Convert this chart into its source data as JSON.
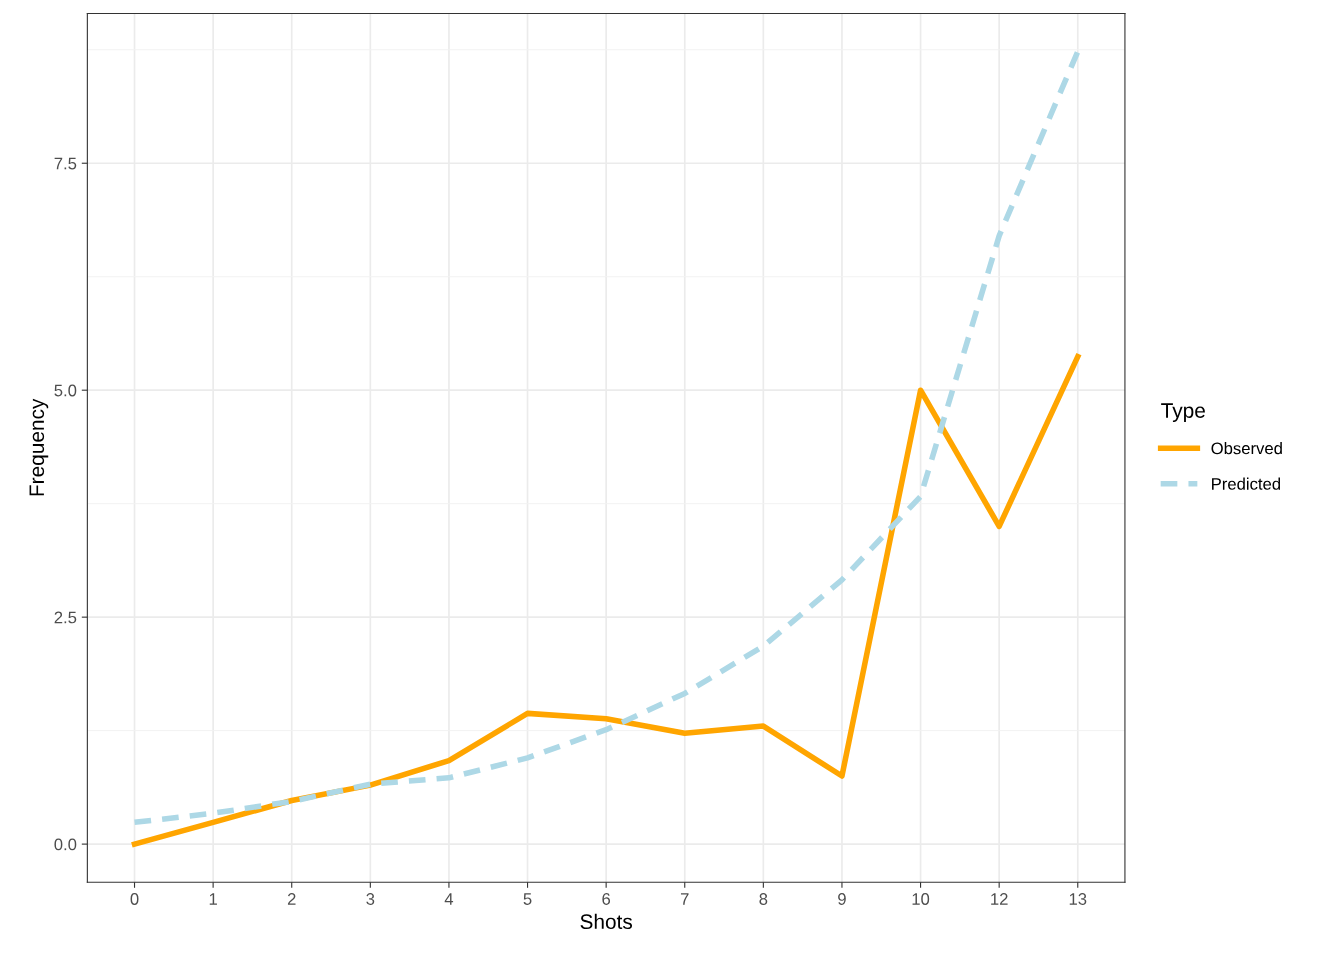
{
  "chart_data": {
    "type": "line",
    "xlabel": "Shots",
    "ylabel": "Frequency",
    "legend_title": "Type",
    "legend": "right",
    "grid": true,
    "categories": [
      "0",
      "1",
      "2",
      "3",
      "4",
      "5",
      "6",
      "7",
      "8",
      "9",
      "10",
      "12",
      "13"
    ],
    "ylim": [
      -0.42,
      9.15
    ],
    "yticks": [
      {
        "value": 0,
        "label": "0.0"
      },
      2.5,
      {
        "value": 5,
        "label": "5.0"
      },
      7.5
    ],
    "series": [
      {
        "name": "Observed",
        "color": "#ffa500",
        "line_style": "solid",
        "values": [
          0,
          0.24,
          0.48,
          0.65,
          0.92,
          1.44,
          1.38,
          1.22,
          1.3,
          0.75,
          5.0,
          3.5,
          5.37
        ]
      },
      {
        "name": "Predicted",
        "color": "#add8e6",
        "line_style": "dashed",
        "values": [
          0.24,
          0.34,
          0.47,
          0.66,
          0.73,
          0.95,
          1.26,
          1.66,
          2.18,
          2.91,
          3.83,
          6.7,
          8.73
        ]
      }
    ]
  }
}
